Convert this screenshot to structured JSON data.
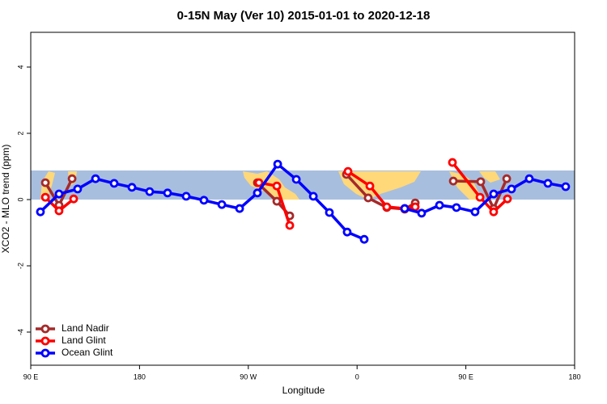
{
  "chart_data": {
    "type": "line",
    "title": "0-15N May (Ver 10)   2015-01-01 to 2020-12-18",
    "xlabel": "Longitude",
    "ylabel": "XCO2 - MLO trend (ppm)",
    "xlim": [
      90,
      540
    ],
    "ylim": [
      -5,
      5
    ],
    "xticks": [
      {
        "value": 90,
        "label": "90 E"
      },
      {
        "value": 180,
        "label": "180"
      },
      {
        "value": 270,
        "label": "90 W"
      },
      {
        "value": 360,
        "label": "0"
      },
      {
        "value": 450,
        "label": "90 E"
      },
      {
        "value": 540,
        "label": "180"
      }
    ],
    "yticks": [
      -4,
      -2,
      0,
      2,
      4
    ],
    "legend": "bottom-left",
    "series": [
      {
        "name": "Land Nadir",
        "color": "#a52a2a",
        "x": [
          102.1,
          113.4,
          124.2,
          null,
          277.5,
          293.6,
          304.3,
          null,
          351.2,
          369.2,
          384.6,
          399.4,
          408.1,
          null,
          439.6,
          462.3,
          473.0,
          483.8
        ],
        "values": [
          0.51,
          -0.17,
          0.63,
          null,
          0.51,
          -0.05,
          -0.49,
          null,
          0.76,
          0.05,
          -0.24,
          -0.29,
          -0.1,
          null,
          0.56,
          0.54,
          -0.27,
          0.63
        ]
      },
      {
        "name": "Land Glint",
        "color": "#ff0000",
        "x": [
          102.1,
          113.4,
          125.5,
          null,
          278.8,
          293.6,
          304.3,
          null,
          352.5,
          370.6,
          384.6,
          399.4,
          408.1,
          null,
          438.9,
          461.7,
          473.0,
          484.4
        ],
        "values": [
          0.07,
          -0.34,
          0.02,
          null,
          0.51,
          0.41,
          -0.78,
          null,
          0.85,
          0.41,
          -0.22,
          -0.27,
          -0.22,
          null,
          1.12,
          0.07,
          -0.37,
          0.02
        ]
      },
      {
        "name": "Ocean Glint",
        "color": "#0000ff",
        "x": [
          98.0,
          113.4,
          128.8,
          143.6,
          159.0,
          173.7,
          188.4,
          203.2,
          218.6,
          233.3,
          248.1,
          262.8,
          277.5,
          294.3,
          309.7,
          323.8,
          337.1,
          351.8,
          365.9,
          null,
          399.4,
          413.4,
          428.2,
          442.2,
          457.6,
          473.0,
          487.8,
          502.5,
          517.9,
          532.6
        ],
        "values": [
          -0.37,
          0.17,
          0.32,
          0.63,
          0.49,
          0.37,
          0.24,
          0.2,
          0.1,
          -0.02,
          -0.15,
          -0.27,
          0.2,
          1.07,
          0.61,
          0.1,
          -0.39,
          -0.98,
          -1.2,
          null,
          -0.27,
          -0.41,
          -0.17,
          -0.24,
          -0.37,
          0.17,
          0.32,
          0.63,
          0.49,
          0.39
        ]
      }
    ]
  }
}
